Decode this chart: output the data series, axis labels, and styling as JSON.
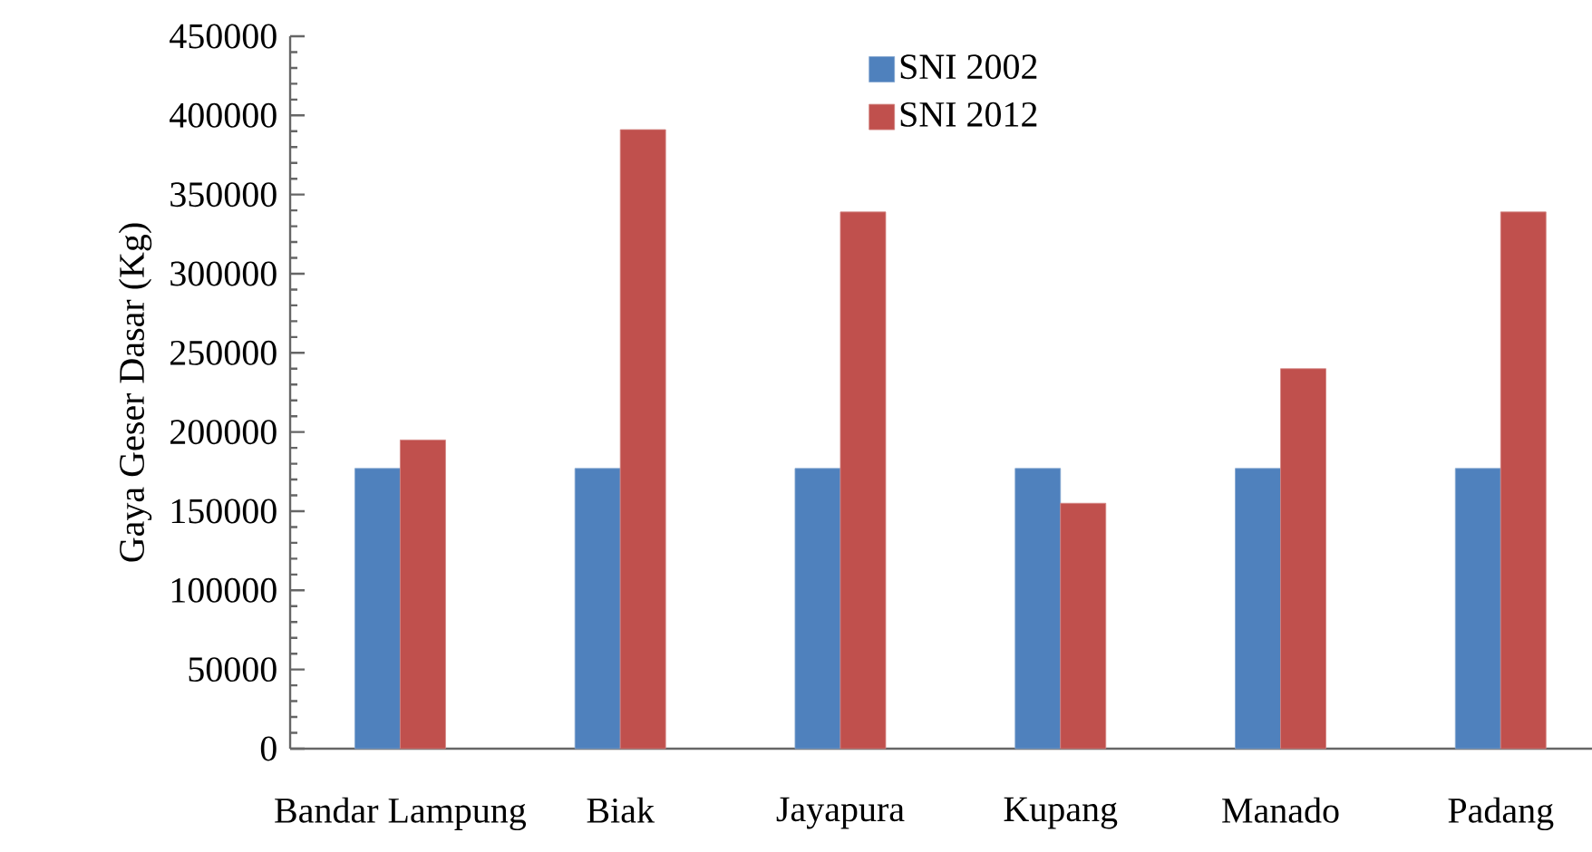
{
  "chart_data": {
    "type": "bar",
    "ylabel": "Gaya Geser Dasar (Kg)",
    "categories": [
      "Bandar Lampung",
      "Biak",
      "Jayapura",
      "Kupang",
      "Manado",
      "Padang"
    ],
    "series": [
      {
        "name": "SNI 2002",
        "color": "#4f81bd",
        "values": [
          177000,
          177000,
          177000,
          177000,
          177000,
          177000
        ]
      },
      {
        "name": "SNI 2012",
        "color": "#c0504d",
        "values": [
          195000,
          391000,
          339000,
          155000,
          240000,
          339000
        ]
      }
    ],
    "ylim": [
      0,
      450000
    ],
    "yticks": [
      0,
      50000,
      100000,
      150000,
      200000,
      250000,
      300000,
      350000,
      400000,
      450000
    ],
    "grid": false,
    "legend": "top"
  }
}
